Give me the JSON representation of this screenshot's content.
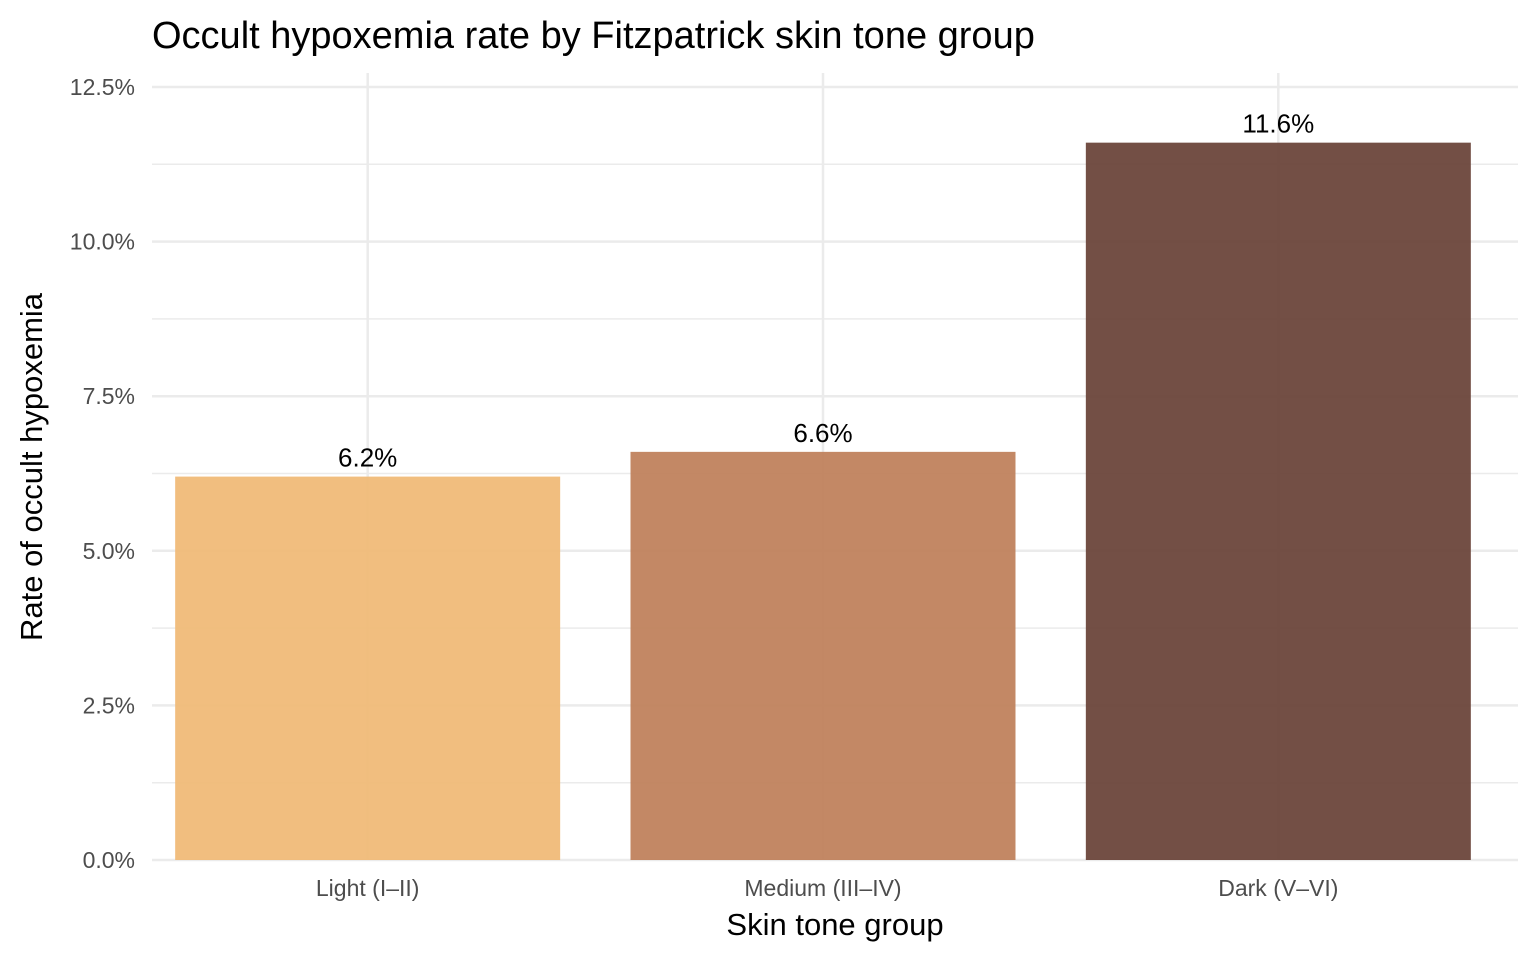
{
  "chart_data": {
    "type": "bar",
    "title": "Occult hypoxemia rate by Fitzpatrick skin tone group",
    "xlabel": "Skin tone group",
    "ylabel": "Rate of occult hypoxemia",
    "categories": [
      "Light (I–II)",
      "Medium (III–IV)",
      "Dark (V–VI)"
    ],
    "values": [
      6.2,
      6.6,
      11.6
    ],
    "data_labels": [
      "6.2%",
      "6.6%",
      "11.6%"
    ],
    "bar_colors": [
      "#F0BA78",
      "#C0825D",
      "#6B463B"
    ],
    "ylim": [
      0,
      12.5
    ],
    "yticks": [
      0,
      2.5,
      5,
      7.5,
      10,
      12.5
    ],
    "ytick_labels": [
      "0.0%",
      "2.5%",
      "5.0%",
      "7.5%",
      "10.0%",
      "12.5%"
    ],
    "grid": true,
    "legend": "none",
    "background_color": "#FFFFFF",
    "grid_color": "#EBEBEB"
  }
}
